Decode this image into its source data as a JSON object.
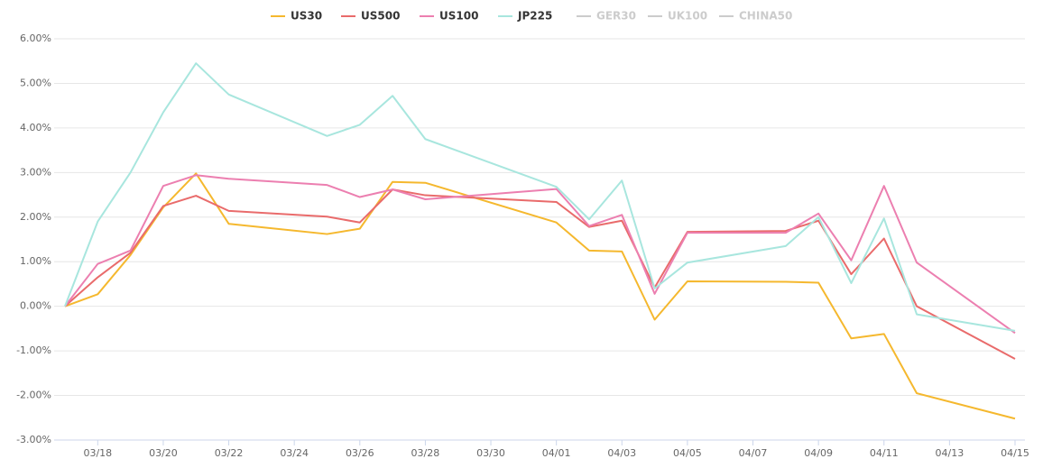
{
  "chart_data": {
    "type": "line",
    "x": [
      "03/17",
      "03/18",
      "03/19",
      "03/20",
      "03/21",
      "03/22",
      "03/25",
      "03/26",
      "03/27",
      "03/28",
      "04/01",
      "04/02",
      "04/03",
      "04/04",
      "04/05",
      "04/08",
      "04/09",
      "04/10",
      "04/11",
      "04/12",
      "04/15"
    ],
    "series": [
      {
        "name": "US30",
        "color": "#f5b82e",
        "values": [
          0,
          0.27,
          1.15,
          2.22,
          2.98,
          1.85,
          1.62,
          1.74,
          2.79,
          2.77,
          1.88,
          1.25,
          1.23,
          -0.3,
          0.56,
          0.55,
          0.53,
          -0.72,
          -0.62,
          -1.95,
          -2.52
        ]
      },
      {
        "name": "US500",
        "color": "#e96b6b",
        "values": [
          0,
          0.65,
          1.2,
          2.25,
          2.48,
          2.14,
          2.01,
          1.88,
          2.62,
          2.49,
          2.34,
          1.78,
          1.92,
          0.42,
          1.67,
          1.69,
          1.92,
          0.72,
          1.52,
          0.0,
          -1.18
        ]
      },
      {
        "name": "US100",
        "color": "#ec7fb0",
        "values": [
          0,
          0.95,
          1.25,
          2.7,
          2.94,
          2.86,
          2.72,
          2.45,
          2.62,
          2.4,
          2.63,
          1.8,
          2.05,
          0.28,
          1.65,
          1.65,
          2.08,
          1.03,
          2.7,
          0.98,
          -0.6
        ]
      },
      {
        "name": "JP225",
        "color": "#a8e6de",
        "values": [
          0,
          1.9,
          3.0,
          4.35,
          5.45,
          4.75,
          3.82,
          4.07,
          4.72,
          3.75,
          2.68,
          1.95,
          2.82,
          0.4,
          0.98,
          1.35,
          2.0,
          0.52,
          1.97,
          -0.18,
          -0.55
        ]
      }
    ],
    "hidden_legend": [
      "GER30",
      "UK100",
      "CHINA50"
    ],
    "ylim": [
      -3,
      6
    ],
    "yticks": [
      {
        "value": -3,
        "label": "-3.00%"
      },
      {
        "value": -2,
        "label": "-2.00%"
      },
      {
        "value": -1,
        "label": "-1.00%"
      },
      {
        "value": 0,
        "label": "0.00%"
      },
      {
        "value": 1,
        "label": "1.00%"
      },
      {
        "value": 2,
        "label": "2.00%"
      },
      {
        "value": 3,
        "label": "3.00%"
      },
      {
        "value": 4,
        "label": "4.00%"
      },
      {
        "value": 5,
        "label": "5.00%"
      },
      {
        "value": 6,
        "label": "6.00%"
      }
    ],
    "xticks": [
      "03/18",
      "03/20",
      "03/22",
      "03/24",
      "03/26",
      "03/28",
      "03/30",
      "04/01",
      "04/03",
      "04/05",
      "04/07",
      "04/09",
      "04/11",
      "04/13",
      "04/15"
    ],
    "grid": true
  }
}
